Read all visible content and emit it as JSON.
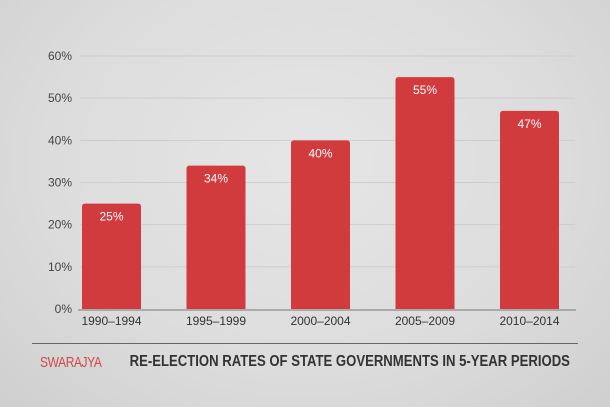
{
  "chart_data": {
    "type": "bar",
    "title": "RE-ELECTION RATES OF STATE GOVERNMENTS IN 5-YEAR PERIODS",
    "categories": [
      "1990–1994",
      "1995–1999",
      "2000–2004",
      "2005–2009",
      "2010–2014"
    ],
    "values": [
      25,
      34,
      40,
      55,
      47
    ],
    "data_labels": [
      "25%",
      "34%",
      "40%",
      "55%",
      "47%"
    ],
    "ylim": [
      0,
      60
    ],
    "yticks": [
      "0%",
      "10%",
      "20%",
      "30%",
      "40%",
      "50%",
      "60%"
    ],
    "grid": true,
    "bar_color": "#d13b3e",
    "xlabel": "",
    "ylabel": ""
  },
  "branding": {
    "logo": "SWARAJYA"
  }
}
